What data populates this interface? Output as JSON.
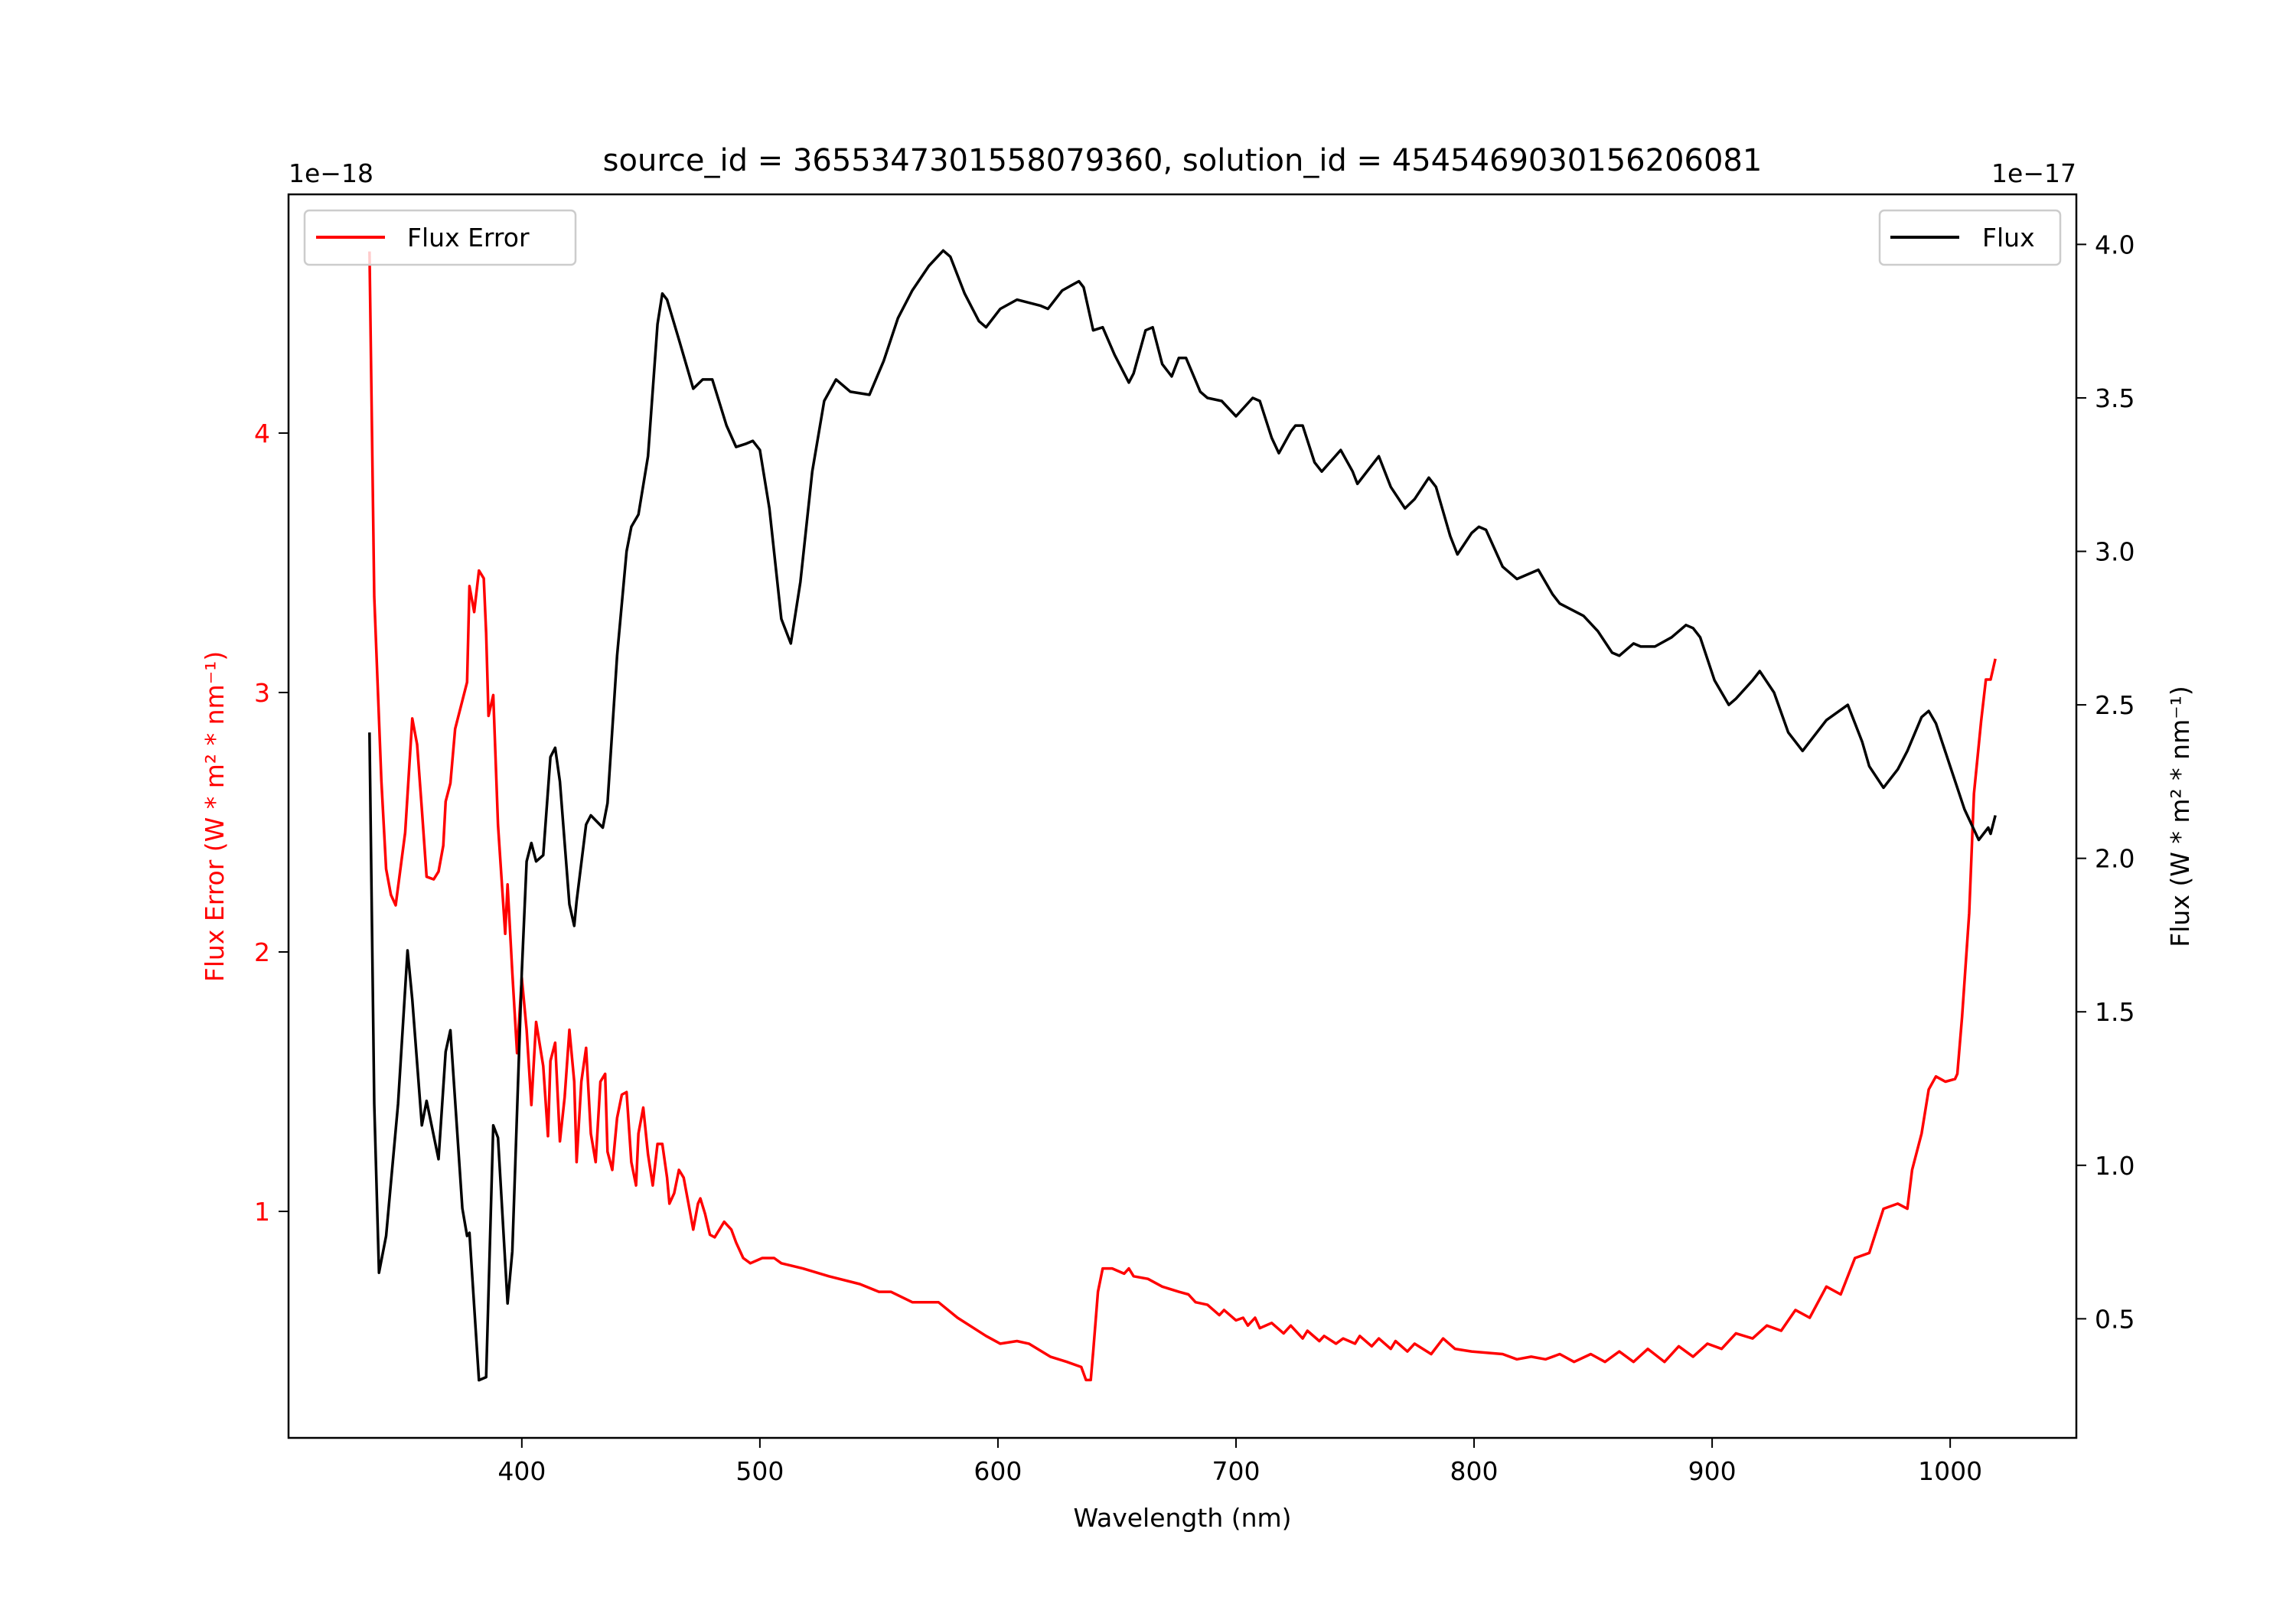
{
  "chart_data": {
    "type": "line",
    "title": "source_id = 3655347301558079360, solution_id = 4545469030156206081",
    "xlabel": "Wavelength (nm)",
    "xlim": [
      302,
      1053
    ],
    "xticks": [
      400,
      500,
      600,
      700,
      800,
      900,
      1000
    ],
    "left_axis": {
      "ylabel": "Flux Error (W * m² * nm⁻¹)",
      "offset_label": "1e−18",
      "ylim": [
        0.127,
        4.92
      ],
      "yticks": [
        1,
        2,
        3,
        4
      ],
      "color": "#ff0000"
    },
    "right_axis": {
      "ylabel": "Flux (W * m² * nm⁻¹)",
      "offset_label": "1e−17",
      "ylim": [
        0.112,
        4.163
      ],
      "yticks": [
        0.5,
        1.0,
        1.5,
        2.0,
        2.5,
        3.0,
        3.5,
        4.0
      ],
      "color": "#000000"
    },
    "legend_left": {
      "label": "Flux Error",
      "placement": "upper-left"
    },
    "legend_right": {
      "label": "Flux",
      "placement": "upper-right"
    },
    "series": [
      {
        "name": "Flux Error",
        "axis": "left",
        "color": "#ff0000",
        "x": [
          336,
          338,
          341,
          343,
          345,
          347,
          351,
          354,
          356,
          358,
          360,
          363,
          365,
          367,
          368,
          370,
          372,
          377,
          378,
          380,
          382,
          384,
          385,
          386,
          388,
          390,
          393,
          394,
          396,
          398,
          400,
          402,
          404,
          406,
          409,
          411,
          412,
          414,
          416,
          418,
          420,
          422,
          423,
          425,
          427,
          429,
          431,
          433,
          435,
          436,
          438,
          440,
          442,
          444,
          446,
          448,
          449,
          451,
          453,
          455,
          457,
          459,
          461,
          462,
          464,
          466,
          468,
          470,
          472,
          474,
          475,
          477,
          479,
          481,
          483,
          485,
          488,
          490,
          493,
          496,
          501,
          506,
          509,
          518,
          529,
          542,
          550,
          555,
          564,
          575,
          583,
          595,
          601,
          608,
          613,
          622,
          629,
          635,
          637,
          639,
          640,
          642,
          644,
          648,
          653,
          655,
          657,
          663,
          669,
          676,
          680,
          683,
          688,
          693,
          695,
          700,
          703,
          705,
          708,
          710,
          715,
          720,
          723,
          728,
          730,
          735,
          737,
          742,
          745,
          750,
          752,
          757,
          760,
          765,
          767,
          772,
          775,
          782,
          787,
          792,
          799,
          812,
          818,
          824,
          830,
          836,
          842,
          849,
          855,
          861,
          867,
          873,
          880,
          886,
          892,
          898,
          904,
          910,
          917,
          923,
          929,
          935,
          941,
          948,
          954,
          960,
          966,
          972,
          978,
          982,
          984,
          988,
          991,
          994,
          998,
          1002,
          1003,
          1005,
          1008,
          1010,
          1013,
          1015,
          1017,
          1019
        ],
        "y": [
          4.7,
          3.37,
          2.66,
          2.32,
          2.22,
          2.18,
          2.46,
          2.9,
          2.8,
          2.55,
          2.29,
          2.28,
          2.31,
          2.41,
          2.58,
          2.65,
          2.86,
          3.04,
          3.41,
          3.31,
          3.47,
          3.44,
          3.23,
          2.91,
          2.99,
          2.49,
          2.07,
          2.26,
          1.92,
          1.61,
          1.9,
          1.7,
          1.41,
          1.73,
          1.56,
          1.29,
          1.58,
          1.65,
          1.27,
          1.44,
          1.7,
          1.5,
          1.19,
          1.5,
          1.63,
          1.3,
          1.19,
          1.5,
          1.53,
          1.23,
          1.16,
          1.36,
          1.45,
          1.46,
          1.19,
          1.1,
          1.3,
          1.4,
          1.22,
          1.1,
          1.26,
          1.26,
          1.13,
          1.03,
          1.07,
          1.16,
          1.13,
          1.03,
          0.93,
          1.03,
          1.05,
          0.99,
          0.91,
          0.9,
          0.93,
          0.96,
          0.93,
          0.88,
          0.82,
          0.8,
          0.82,
          0.82,
          0.8,
          0.78,
          0.75,
          0.72,
          0.69,
          0.69,
          0.65,
          0.65,
          0.59,
          0.52,
          0.49,
          0.5,
          0.49,
          0.44,
          0.42,
          0.4,
          0.35,
          0.35,
          0.46,
          0.69,
          0.78,
          0.78,
          0.76,
          0.78,
          0.75,
          0.74,
          0.71,
          0.69,
          0.68,
          0.65,
          0.64,
          0.6,
          0.62,
          0.58,
          0.59,
          0.56,
          0.59,
          0.55,
          0.57,
          0.53,
          0.56,
          0.51,
          0.54,
          0.5,
          0.52,
          0.49,
          0.51,
          0.49,
          0.52,
          0.48,
          0.51,
          0.47,
          0.5,
          0.46,
          0.49,
          0.45,
          0.51,
          0.47,
          0.46,
          0.45,
          0.43,
          0.44,
          0.43,
          0.45,
          0.42,
          0.45,
          0.42,
          0.46,
          0.42,
          0.47,
          0.42,
          0.48,
          0.44,
          0.49,
          0.47,
          0.53,
          0.51,
          0.56,
          0.54,
          0.62,
          0.59,
          0.71,
          0.68,
          0.82,
          0.84,
          1.01,
          1.03,
          1.01,
          1.16,
          1.3,
          1.47,
          1.52,
          1.5,
          1.51,
          1.53,
          1.75,
          2.15,
          2.61,
          2.89,
          3.05,
          3.05,
          3.13
        ]
      },
      {
        "name": "Flux",
        "axis": "right",
        "color": "#000000",
        "x": [
          336,
          338,
          340,
          343,
          348,
          352,
          354,
          358,
          360,
          365,
          368,
          370,
          375,
          377,
          378,
          382,
          385,
          388,
          390,
          394,
          396,
          400,
          402,
          404,
          406,
          409,
          412,
          414,
          416,
          420,
          422,
          423,
          427,
          429,
          434,
          436,
          440,
          444,
          446,
          449,
          453,
          457,
          459,
          461,
          466,
          472,
          476,
          480,
          486,
          490,
          494,
          497,
          500,
          504,
          509,
          513,
          517,
          522,
          527,
          532,
          538,
          546,
          552,
          558,
          564,
          571,
          577,
          580,
          586,
          592,
          595,
          601,
          608,
          618,
          621,
          627,
          634,
          636,
          640,
          644,
          649,
          655,
          657,
          662,
          665,
          669,
          673,
          676,
          679,
          685,
          688,
          694,
          700,
          707,
          710,
          715,
          718,
          723,
          725,
          728,
          733,
          736,
          744,
          749,
          751,
          760,
          765,
          771,
          775,
          781,
          784,
          790,
          793,
          799,
          802,
          805,
          812,
          818,
          827,
          833,
          836,
          846,
          852,
          858,
          861,
          867,
          870,
          876,
          883,
          889,
          892,
          895,
          901,
          907,
          910,
          917,
          920,
          926,
          932,
          938,
          941,
          948,
          957,
          963,
          966,
          972,
          978,
          982,
          988,
          991,
          994,
          1000,
          1006,
          1012,
          1016,
          1017,
          1019
        ],
        "y": [
          2.41,
          1.2,
          0.65,
          0.77,
          1.2,
          1.7,
          1.54,
          1.13,
          1.21,
          1.02,
          1.37,
          1.44,
          0.86,
          0.77,
          0.78,
          0.3,
          0.31,
          1.13,
          1.09,
          0.55,
          0.72,
          1.63,
          1.99,
          2.05,
          1.99,
          2.01,
          2.33,
          2.36,
          2.25,
          1.85,
          1.78,
          1.86,
          2.11,
          2.14,
          2.1,
          2.18,
          2.66,
          3.0,
          3.08,
          3.12,
          3.31,
          3.74,
          3.84,
          3.82,
          3.69,
          3.53,
          3.56,
          3.56,
          3.41,
          3.34,
          3.35,
          3.36,
          3.33,
          3.14,
          2.78,
          2.7,
          2.9,
          3.26,
          3.49,
          3.56,
          3.52,
          3.51,
          3.62,
          3.76,
          3.85,
          3.93,
          3.98,
          3.96,
          3.84,
          3.75,
          3.73,
          3.79,
          3.82,
          3.8,
          3.79,
          3.85,
          3.88,
          3.86,
          3.72,
          3.73,
          3.64,
          3.55,
          3.58,
          3.72,
          3.73,
          3.61,
          3.57,
          3.63,
          3.63,
          3.52,
          3.5,
          3.49,
          3.44,
          3.5,
          3.49,
          3.37,
          3.32,
          3.39,
          3.41,
          3.41,
          3.29,
          3.26,
          3.33,
          3.26,
          3.22,
          3.31,
          3.21,
          3.14,
          3.17,
          3.24,
          3.21,
          3.05,
          2.99,
          3.06,
          3.08,
          3.07,
          2.95,
          2.91,
          2.94,
          2.86,
          2.83,
          2.79,
          2.74,
          2.67,
          2.66,
          2.7,
          2.69,
          2.69,
          2.72,
          2.76,
          2.75,
          2.72,
          2.58,
          2.5,
          2.52,
          2.58,
          2.61,
          2.54,
          2.41,
          2.35,
          2.38,
          2.45,
          2.5,
          2.38,
          2.3,
          2.23,
          2.29,
          2.35,
          2.46,
          2.48,
          2.44,
          2.3,
          2.16,
          2.06,
          2.1,
          2.08,
          2.14
        ]
      }
    ]
  }
}
